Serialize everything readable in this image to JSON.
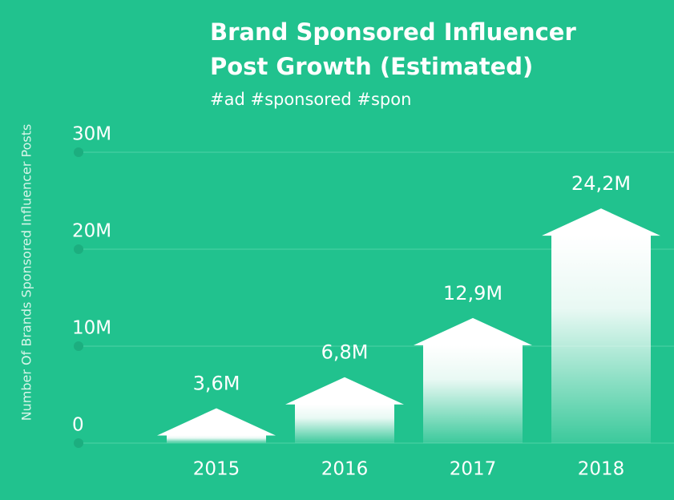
{
  "chart_data": {
    "type": "arrow-bar",
    "title": [
      "Brand Sponsored Influencer",
      "Post Growth (Estimated)"
    ],
    "subtitle": "#ad #sponsored #spon",
    "y_label": "Number Of Brands Sponsored Influencer Posts",
    "categories": [
      "2015",
      "2016",
      "2017",
      "2018"
    ],
    "values": [
      3600000,
      6800000,
      12900000,
      24200000
    ],
    "value_labels": [
      "3,6M",
      "6,8M",
      "12,9M",
      "24,2M"
    ],
    "color": "#ffffff",
    "ylim": [
      0,
      30000000
    ],
    "yticks": [
      {
        "value": 0,
        "label": "0"
      },
      {
        "value": 10000000,
        "label": "10M"
      },
      {
        "value": 20000000,
        "label": "20M"
      },
      {
        "value": 30000000,
        "label": "30M"
      }
    ],
    "grid": true
  }
}
